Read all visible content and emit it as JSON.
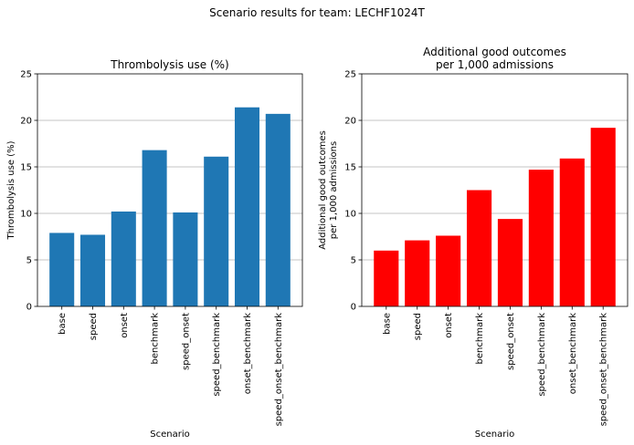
{
  "suptitle": "Scenario results for team: LECHF1024T",
  "chart_data": [
    {
      "type": "bar",
      "title": [
        "Thrombolysis use (%)"
      ],
      "xlabel": "Scenario",
      "ylabel": [
        "Thrombolysis use (%)"
      ],
      "categories": [
        "base",
        "speed",
        "onset",
        "benchmark",
        "speed_onset",
        "speed_benchmark",
        "onset_benchmark",
        "speed_onset_benchmark"
      ],
      "values": [
        7.9,
        7.7,
        10.2,
        16.8,
        10.1,
        16.1,
        21.4,
        20.7
      ],
      "ylim": [
        0,
        25
      ],
      "yticks": [
        0,
        5,
        10,
        15,
        20,
        25
      ],
      "grid": "horizontal",
      "color": "#1f77b4"
    },
    {
      "type": "bar",
      "title": [
        "Additional good outcomes",
        "per 1,000 admissions"
      ],
      "xlabel": "Scenario",
      "ylabel": [
        "Additional good outcomes",
        "per 1,000 admissions"
      ],
      "categories": [
        "base",
        "speed",
        "onset",
        "benchmark",
        "speed_onset",
        "speed_benchmark",
        "onset_benchmark",
        "speed_onset_benchmark"
      ],
      "values": [
        6.0,
        7.1,
        7.6,
        12.5,
        9.4,
        14.7,
        15.9,
        19.2
      ],
      "ylim": [
        0,
        25
      ],
      "yticks": [
        0,
        5,
        10,
        15,
        20,
        25
      ],
      "grid": "horizontal",
      "color": "#ff0000"
    }
  ]
}
